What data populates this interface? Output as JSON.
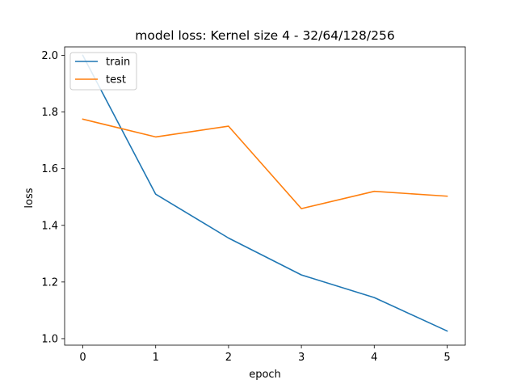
{
  "chart_data": {
    "type": "line",
    "title": "model loss: Kernel size 4 - 32/64/128/256",
    "xlabel": "epoch",
    "ylabel": "loss",
    "x": [
      0,
      1,
      2,
      3,
      4,
      5
    ],
    "xticks": [
      "0",
      "1",
      "2",
      "3",
      "4",
      "5"
    ],
    "yticks": [
      "1.0",
      "1.2",
      "1.4",
      "1.6",
      "1.8",
      "2.0"
    ],
    "xlim": [
      -0.25,
      5.25
    ],
    "ylim": [
      0.977,
      2.03
    ],
    "grid": false,
    "legend_position": "top-left",
    "series": [
      {
        "name": "train",
        "color": "#1f77b4",
        "values": [
          2.0,
          1.51,
          1.355,
          1.225,
          1.145,
          1.027
        ]
      },
      {
        "name": "test",
        "color": "#ff7f0e",
        "values": [
          1.775,
          1.712,
          1.75,
          1.459,
          1.52,
          1.503
        ]
      }
    ]
  }
}
